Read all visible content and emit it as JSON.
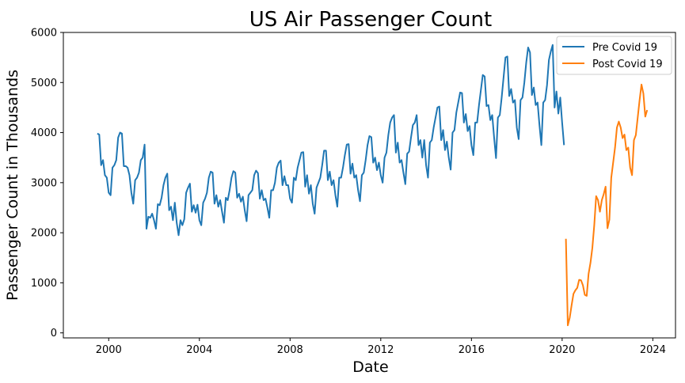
{
  "chart_data": {
    "type": "line",
    "title": "US Air Passenger Count",
    "xlabel": "Date",
    "ylabel": "Passenger Count in Thousands",
    "xlim": [
      "1998-01-01",
      "2025-01-01"
    ],
    "ylim": [
      -100,
      6000
    ],
    "x_ticks": [
      "2000",
      "2004",
      "2008",
      "2012",
      "2016",
      "2020",
      "2024"
    ],
    "y_ticks": [
      "0",
      "1000",
      "2000",
      "3000",
      "4000",
      "5000",
      "6000"
    ],
    "grid": false,
    "legend_position": "top-right",
    "series": [
      {
        "name": "Pre Covid 19",
        "color": "#1f77b4",
        "points": [
          [
            "1999-07",
            3980
          ],
          [
            "1999-08",
            3960
          ],
          [
            "1999-09",
            3350
          ],
          [
            "1999-10",
            3450
          ],
          [
            "1999-11",
            3150
          ],
          [
            "1999-12",
            3100
          ],
          [
            "2000-01",
            2800
          ],
          [
            "2000-02",
            2750
          ],
          [
            "2000-03",
            3300
          ],
          [
            "2000-04",
            3350
          ],
          [
            "2000-05",
            3450
          ],
          [
            "2000-06",
            3900
          ],
          [
            "2000-07",
            4000
          ],
          [
            "2000-08",
            3980
          ],
          [
            "2000-09",
            3330
          ],
          [
            "2000-10",
            3330
          ],
          [
            "2000-11",
            3300
          ],
          [
            "2000-12",
            3150
          ],
          [
            "2001-01",
            2800
          ],
          [
            "2001-02",
            2580
          ],
          [
            "2001-03",
            3050
          ],
          [
            "2001-04",
            3100
          ],
          [
            "2001-05",
            3200
          ],
          [
            "2001-06",
            3450
          ],
          [
            "2001-07",
            3500
          ],
          [
            "2001-08",
            3760
          ],
          [
            "2001-09",
            2080
          ],
          [
            "2001-10",
            2320
          ],
          [
            "2001-11",
            2300
          ],
          [
            "2001-12",
            2380
          ],
          [
            "2002-01",
            2250
          ],
          [
            "2002-02",
            2080
          ],
          [
            "2002-03",
            2570
          ],
          [
            "2002-04",
            2550
          ],
          [
            "2002-05",
            2700
          ],
          [
            "2002-06",
            2950
          ],
          [
            "2002-07",
            3100
          ],
          [
            "2002-08",
            3180
          ],
          [
            "2002-09",
            2450
          ],
          [
            "2002-10",
            2520
          ],
          [
            "2002-11",
            2250
          ],
          [
            "2002-12",
            2600
          ],
          [
            "2003-01",
            2200
          ],
          [
            "2003-02",
            1950
          ],
          [
            "2003-03",
            2250
          ],
          [
            "2003-04",
            2150
          ],
          [
            "2003-05",
            2270
          ],
          [
            "2003-06",
            2800
          ],
          [
            "2003-07",
            2900
          ],
          [
            "2003-08",
            2980
          ],
          [
            "2003-09",
            2420
          ],
          [
            "2003-10",
            2550
          ],
          [
            "2003-11",
            2400
          ],
          [
            "2003-12",
            2560
          ],
          [
            "2004-01",
            2250
          ],
          [
            "2004-02",
            2150
          ],
          [
            "2004-03",
            2600
          ],
          [
            "2004-04",
            2680
          ],
          [
            "2004-05",
            2800
          ],
          [
            "2004-06",
            3100
          ],
          [
            "2004-07",
            3220
          ],
          [
            "2004-08",
            3200
          ],
          [
            "2004-09",
            2580
          ],
          [
            "2004-10",
            2750
          ],
          [
            "2004-11",
            2520
          ],
          [
            "2004-12",
            2650
          ],
          [
            "2005-01",
            2420
          ],
          [
            "2005-02",
            2200
          ],
          [
            "2005-03",
            2700
          ],
          [
            "2005-04",
            2650
          ],
          [
            "2005-05",
            2850
          ],
          [
            "2005-06",
            3100
          ],
          [
            "2005-07",
            3230
          ],
          [
            "2005-08",
            3200
          ],
          [
            "2005-09",
            2700
          ],
          [
            "2005-10",
            2780
          ],
          [
            "2005-11",
            2620
          ],
          [
            "2005-12",
            2720
          ],
          [
            "2006-01",
            2450
          ],
          [
            "2006-02",
            2230
          ],
          [
            "2006-03",
            2750
          ],
          [
            "2006-04",
            2800
          ],
          [
            "2006-05",
            2850
          ],
          [
            "2006-06",
            3150
          ],
          [
            "2006-07",
            3240
          ],
          [
            "2006-08",
            3190
          ],
          [
            "2006-09",
            2680
          ],
          [
            "2006-10",
            2850
          ],
          [
            "2006-11",
            2650
          ],
          [
            "2006-12",
            2680
          ],
          [
            "2007-01",
            2500
          ],
          [
            "2007-02",
            2300
          ],
          [
            "2007-03",
            2850
          ],
          [
            "2007-04",
            2850
          ],
          [
            "2007-05",
            3000
          ],
          [
            "2007-06",
            3300
          ],
          [
            "2007-07",
            3400
          ],
          [
            "2007-08",
            3440
          ],
          [
            "2007-09",
            2950
          ],
          [
            "2007-10",
            3130
          ],
          [
            "2007-11",
            2950
          ],
          [
            "2007-12",
            2950
          ],
          [
            "2008-01",
            2680
          ],
          [
            "2008-02",
            2600
          ],
          [
            "2008-03",
            3100
          ],
          [
            "2008-04",
            3050
          ],
          [
            "2008-05",
            3300
          ],
          [
            "2008-06",
            3450
          ],
          [
            "2008-07",
            3600
          ],
          [
            "2008-08",
            3610
          ],
          [
            "2008-09",
            2920
          ],
          [
            "2008-10",
            3150
          ],
          [
            "2008-11",
            2780
          ],
          [
            "2008-12",
            2950
          ],
          [
            "2009-01",
            2580
          ],
          [
            "2009-02",
            2380
          ],
          [
            "2009-03",
            2900
          ],
          [
            "2009-04",
            3000
          ],
          [
            "2009-05",
            3100
          ],
          [
            "2009-06",
            3350
          ],
          [
            "2009-07",
            3640
          ],
          [
            "2009-08",
            3640
          ],
          [
            "2009-09",
            3050
          ],
          [
            "2009-10",
            3220
          ],
          [
            "2009-11",
            2950
          ],
          [
            "2009-12",
            3050
          ],
          [
            "2010-01",
            2750
          ],
          [
            "2010-02",
            2520
          ],
          [
            "2010-03",
            3100
          ],
          [
            "2010-04",
            3100
          ],
          [
            "2010-05",
            3300
          ],
          [
            "2010-06",
            3550
          ],
          [
            "2010-07",
            3760
          ],
          [
            "2010-08",
            3770
          ],
          [
            "2010-09",
            3180
          ],
          [
            "2010-10",
            3380
          ],
          [
            "2010-11",
            3100
          ],
          [
            "2010-12",
            3150
          ],
          [
            "2011-01",
            2850
          ],
          [
            "2011-02",
            2630
          ],
          [
            "2011-03",
            3150
          ],
          [
            "2011-04",
            3200
          ],
          [
            "2011-05",
            3450
          ],
          [
            "2011-06",
            3750
          ],
          [
            "2011-07",
            3930
          ],
          [
            "2011-08",
            3910
          ],
          [
            "2011-09",
            3400
          ],
          [
            "2011-10",
            3500
          ],
          [
            "2011-11",
            3250
          ],
          [
            "2011-12",
            3400
          ],
          [
            "2012-01",
            3150
          ],
          [
            "2012-02",
            3000
          ],
          [
            "2012-03",
            3500
          ],
          [
            "2012-04",
            3600
          ],
          [
            "2012-05",
            3950
          ],
          [
            "2012-06",
            4200
          ],
          [
            "2012-07",
            4300
          ],
          [
            "2012-08",
            4350
          ],
          [
            "2012-09",
            3600
          ],
          [
            "2012-10",
            3800
          ],
          [
            "2012-11",
            3400
          ],
          [
            "2012-12",
            3450
          ],
          [
            "2013-01",
            3200
          ],
          [
            "2013-02",
            2970
          ],
          [
            "2013-03",
            3580
          ],
          [
            "2013-04",
            3620
          ],
          [
            "2013-05",
            3900
          ],
          [
            "2013-06",
            4150
          ],
          [
            "2013-07",
            4200
          ],
          [
            "2013-08",
            4350
          ],
          [
            "2013-09",
            3750
          ],
          [
            "2013-10",
            3850
          ],
          [
            "2013-11",
            3500
          ],
          [
            "2013-12",
            3850
          ],
          [
            "2014-01",
            3350
          ],
          [
            "2014-02",
            3100
          ],
          [
            "2014-03",
            3800
          ],
          [
            "2014-04",
            3850
          ],
          [
            "2014-05",
            4100
          ],
          [
            "2014-06",
            4300
          ],
          [
            "2014-07",
            4500
          ],
          [
            "2014-08",
            4520
          ],
          [
            "2014-09",
            3850
          ],
          [
            "2014-10",
            4050
          ],
          [
            "2014-11",
            3650
          ],
          [
            "2014-12",
            3820
          ],
          [
            "2015-01",
            3500
          ],
          [
            "2015-02",
            3260
          ],
          [
            "2015-03",
            4000
          ],
          [
            "2015-04",
            4050
          ],
          [
            "2015-05",
            4400
          ],
          [
            "2015-06",
            4600
          ],
          [
            "2015-07",
            4800
          ],
          [
            "2015-08",
            4790
          ],
          [
            "2015-09",
            4200
          ],
          [
            "2015-10",
            4370
          ],
          [
            "2015-11",
            4030
          ],
          [
            "2015-12",
            4130
          ],
          [
            "2016-01",
            3750
          ],
          [
            "2016-02",
            3550
          ],
          [
            "2016-03",
            4200
          ],
          [
            "2016-04",
            4200
          ],
          [
            "2016-05",
            4550
          ],
          [
            "2016-06",
            4850
          ],
          [
            "2016-07",
            5150
          ],
          [
            "2016-08",
            5120
          ],
          [
            "2016-09",
            4530
          ],
          [
            "2016-10",
            4550
          ],
          [
            "2016-11",
            4250
          ],
          [
            "2016-12",
            4350
          ],
          [
            "2017-01",
            3900
          ],
          [
            "2017-02",
            3490
          ],
          [
            "2017-03",
            4300
          ],
          [
            "2017-04",
            4350
          ],
          [
            "2017-05",
            4700
          ],
          [
            "2017-06",
            5100
          ],
          [
            "2017-07",
            5500
          ],
          [
            "2017-08",
            5520
          ],
          [
            "2017-09",
            4730
          ],
          [
            "2017-10",
            4870
          ],
          [
            "2017-11",
            4600
          ],
          [
            "2017-12",
            4650
          ],
          [
            "2018-01",
            4100
          ],
          [
            "2018-02",
            3870
          ],
          [
            "2018-03",
            4650
          ],
          [
            "2018-04",
            4700
          ],
          [
            "2018-05",
            5000
          ],
          [
            "2018-06",
            5400
          ],
          [
            "2018-07",
            5700
          ],
          [
            "2018-08",
            5600
          ],
          [
            "2018-09",
            4750
          ],
          [
            "2018-10",
            4900
          ],
          [
            "2018-11",
            4550
          ],
          [
            "2018-12",
            4600
          ],
          [
            "2019-01",
            4150
          ],
          [
            "2019-02",
            3750
          ],
          [
            "2019-03",
            4600
          ],
          [
            "2019-04",
            4650
          ],
          [
            "2019-05",
            4950
          ],
          [
            "2019-06",
            5450
          ],
          [
            "2019-07",
            5620
          ],
          [
            "2019-08",
            5750
          ],
          [
            "2019-09",
            4500
          ],
          [
            "2019-10",
            4820
          ],
          [
            "2019-11",
            4380
          ],
          [
            "2019-12",
            4700
          ],
          [
            "2020-01",
            4200
          ],
          [
            "2020-02",
            3750
          ]
        ]
      },
      {
        "name": "Post Covid 19",
        "color": "#ff7f0e",
        "points": [
          [
            "2020-03",
            1880
          ],
          [
            "2020-04",
            150
          ],
          [
            "2020-05",
            300
          ],
          [
            "2020-06",
            550
          ],
          [
            "2020-07",
            780
          ],
          [
            "2020-08",
            850
          ],
          [
            "2020-09",
            900
          ],
          [
            "2020-10",
            1060
          ],
          [
            "2020-11",
            1050
          ],
          [
            "2020-12",
            950
          ],
          [
            "2021-01",
            760
          ],
          [
            "2021-02",
            740
          ],
          [
            "2021-03",
            1180
          ],
          [
            "2021-04",
            1400
          ],
          [
            "2021-05",
            1700
          ],
          [
            "2021-06",
            2150
          ],
          [
            "2021-07",
            2730
          ],
          [
            "2021-08",
            2650
          ],
          [
            "2021-09",
            2420
          ],
          [
            "2021-10",
            2650
          ],
          [
            "2021-11",
            2770
          ],
          [
            "2021-12",
            2920
          ],
          [
            "2022-01",
            2090
          ],
          [
            "2022-02",
            2260
          ],
          [
            "2022-03",
            3100
          ],
          [
            "2022-04",
            3400
          ],
          [
            "2022-05",
            3700
          ],
          [
            "2022-06",
            4100
          ],
          [
            "2022-07",
            4220
          ],
          [
            "2022-08",
            4100
          ],
          [
            "2022-09",
            3890
          ],
          [
            "2022-10",
            3960
          ],
          [
            "2022-11",
            3650
          ],
          [
            "2022-12",
            3700
          ],
          [
            "2023-01",
            3300
          ],
          [
            "2023-02",
            3150
          ],
          [
            "2023-03",
            3850
          ],
          [
            "2023-04",
            3950
          ],
          [
            "2023-05",
            4300
          ],
          [
            "2023-06",
            4650
          ],
          [
            "2023-07",
            4960
          ],
          [
            "2023-08",
            4780
          ],
          [
            "2023-09",
            4320
          ],
          [
            "2023-10",
            4450
          ]
        ]
      }
    ]
  }
}
